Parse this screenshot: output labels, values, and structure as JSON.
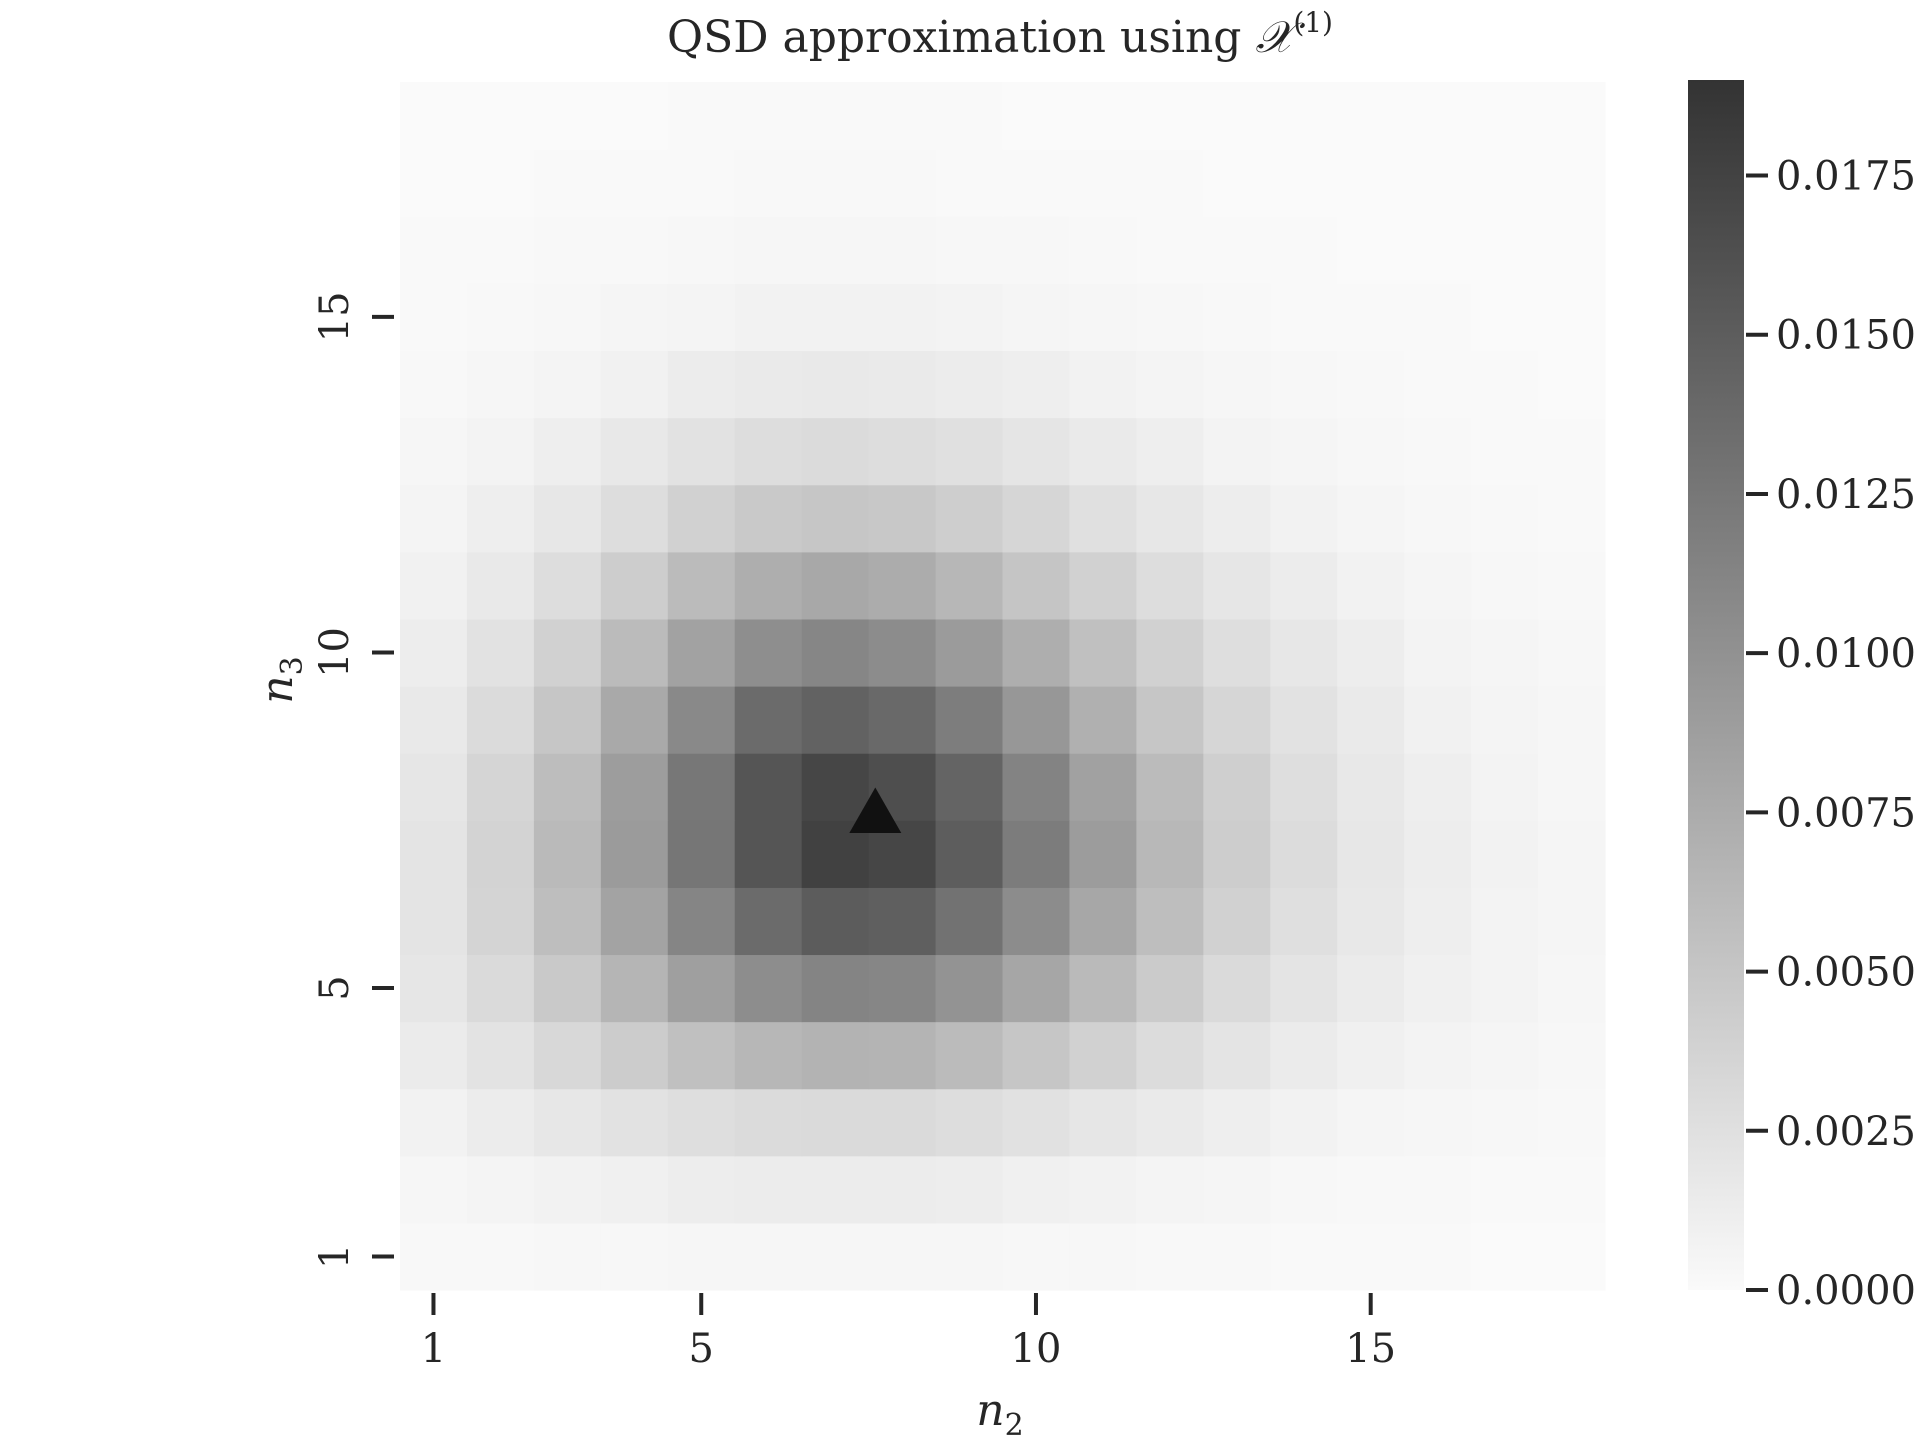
{
  "chart_data": {
    "type": "heatmap",
    "title_prefix": "QSD approximation using ",
    "title_symbol": "𝒳",
    "title_superscript": "(1)",
    "xlabel_base": "n",
    "xlabel_sub": "2",
    "ylabel_base": "n",
    "ylabel_sub": "3",
    "x_range": [
      1,
      18
    ],
    "y_range": [
      1,
      18
    ],
    "x_ticks": [
      1,
      5,
      10,
      15
    ],
    "y_ticks": [
      1,
      5,
      10,
      15
    ],
    "x_tick_labels": [
      "1",
      "5",
      "10",
      "15"
    ],
    "y_tick_labels": [
      "1",
      "5",
      "10",
      "15"
    ],
    "colorbar": {
      "range": [
        0.0,
        0.019
      ],
      "ticks": [
        0.0,
        0.0025,
        0.005,
        0.0075,
        0.01,
        0.0125,
        0.015,
        0.0175
      ],
      "tick_labels": [
        "0.0000",
        "0.0025",
        "0.0050",
        "0.0075",
        "0.0100",
        "0.0125",
        "0.0150",
        "0.0175"
      ],
      "colormap": [
        "#fafafa",
        "#333333"
      ]
    },
    "peak_marker": {
      "shape": "triangle",
      "n2": 7.6,
      "n3": 7.6,
      "color": "#111111"
    },
    "values": [
      [
        0.0002,
        0.0002,
        0.0003,
        0.0003,
        0.0004,
        0.0004,
        0.0004,
        0.0004,
        0.0004,
        0.0003,
        0.0003,
        0.0002,
        0.0002,
        0.0001,
        0.0001,
        0.0001,
        0.0,
        0.0
      ],
      [
        0.0004,
        0.0006,
        0.0008,
        0.001,
        0.0012,
        0.0013,
        0.0013,
        0.0013,
        0.0012,
        0.001,
        0.0008,
        0.0006,
        0.0005,
        0.0003,
        0.0002,
        0.0002,
        0.0001,
        0.0001
      ],
      [
        0.0008,
        0.0013,
        0.0018,
        0.0023,
        0.0027,
        0.003,
        0.0031,
        0.0031,
        0.0028,
        0.0024,
        0.0019,
        0.0015,
        0.0011,
        0.0008,
        0.0005,
        0.0004,
        0.0003,
        0.0002
      ],
      [
        0.0014,
        0.0022,
        0.0032,
        0.0044,
        0.0055,
        0.0064,
        0.0068,
        0.0067,
        0.006,
        0.005,
        0.0039,
        0.0029,
        0.0021,
        0.0014,
        0.001,
        0.0007,
        0.0005,
        0.0003
      ],
      [
        0.0019,
        0.0031,
        0.0047,
        0.0066,
        0.0087,
        0.0104,
        0.0113,
        0.0111,
        0.0098,
        0.008,
        0.0061,
        0.0045,
        0.0031,
        0.0021,
        0.0014,
        0.001,
        0.0007,
        0.0004
      ],
      [
        0.0021,
        0.0036,
        0.0057,
        0.0083,
        0.0112,
        0.0137,
        0.0151,
        0.0148,
        0.013,
        0.0105,
        0.0079,
        0.0057,
        0.0039,
        0.0026,
        0.0017,
        0.0011,
        0.0007,
        0.0005
      ],
      [
        0.0021,
        0.0037,
        0.0061,
        0.0091,
        0.0126,
        0.0158,
        0.0177,
        0.0172,
        0.015,
        0.012,
        0.009,
        0.0063,
        0.0043,
        0.0029,
        0.0018,
        0.0012,
        0.0008,
        0.0005
      ],
      [
        0.0019,
        0.0035,
        0.0058,
        0.0089,
        0.0125,
        0.0158,
        0.0172,
        0.0164,
        0.0143,
        0.0114,
        0.0085,
        0.006,
        0.0041,
        0.0027,
        0.0017,
        0.0011,
        0.0007,
        0.0004
      ],
      [
        0.0016,
        0.003,
        0.005,
        0.0077,
        0.0108,
        0.0137,
        0.0145,
        0.0138,
        0.0119,
        0.0095,
        0.0071,
        0.005,
        0.0034,
        0.0023,
        0.0015,
        0.0009,
        0.0006,
        0.0004
      ],
      [
        0.0012,
        0.0023,
        0.0039,
        0.006,
        0.0084,
        0.0103,
        0.0111,
        0.0105,
        0.0091,
        0.0073,
        0.0055,
        0.0039,
        0.0027,
        0.0018,
        0.0012,
        0.0007,
        0.0005,
        0.0003
      ],
      [
        0.0009,
        0.0016,
        0.0028,
        0.0043,
        0.006,
        0.0073,
        0.0078,
        0.0074,
        0.0064,
        0.0051,
        0.0039,
        0.0028,
        0.0019,
        0.0013,
        0.0008,
        0.0005,
        0.0003,
        0.0002
      ],
      [
        0.0006,
        0.0011,
        0.0018,
        0.0028,
        0.0039,
        0.0047,
        0.005,
        0.0048,
        0.0042,
        0.0034,
        0.0025,
        0.0018,
        0.0012,
        0.0008,
        0.0005,
        0.0003,
        0.0002,
        0.0001
      ],
      [
        0.0004,
        0.0007,
        0.0011,
        0.0017,
        0.0023,
        0.0028,
        0.003,
        0.0028,
        0.0025,
        0.002,
        0.0015,
        0.0011,
        0.0007,
        0.0005,
        0.0003,
        0.0002,
        0.0001,
        0.0001
      ],
      [
        0.0002,
        0.0004,
        0.0006,
        0.0009,
        0.0013,
        0.0015,
        0.0016,
        0.0015,
        0.0013,
        0.0011,
        0.0008,
        0.0006,
        0.0004,
        0.0003,
        0.0002,
        0.0001,
        0.0001,
        0.0
      ],
      [
        0.0001,
        0.0002,
        0.0003,
        0.0005,
        0.0006,
        0.0008,
        0.0008,
        0.0008,
        0.0007,
        0.0005,
        0.0004,
        0.0003,
        0.0002,
        0.0001,
        0.0001,
        0.0001,
        0.0,
        0.0
      ],
      [
        0.0001,
        0.0001,
        0.0002,
        0.0002,
        0.0003,
        0.0004,
        0.0004,
        0.0004,
        0.0003,
        0.0003,
        0.0002,
        0.0001,
        0.0001,
        0.0001,
        0.0,
        0.0,
        0.0,
        0.0
      ],
      [
        0.0,
        0.0,
        0.0001,
        0.0001,
        0.0001,
        0.0002,
        0.0002,
        0.0002,
        0.0001,
        0.0001,
        0.0001,
        0.0001,
        0.0,
        0.0,
        0.0,
        0.0,
        0.0,
        0.0
      ],
      [
        0.0,
        0.0,
        0.0,
        0.0,
        0.0001,
        0.0001,
        0.0001,
        0.0001,
        0.0001,
        0.0,
        0.0,
        0.0,
        0.0,
        0.0,
        0.0,
        0.0,
        0.0,
        0.0
      ]
    ]
  }
}
